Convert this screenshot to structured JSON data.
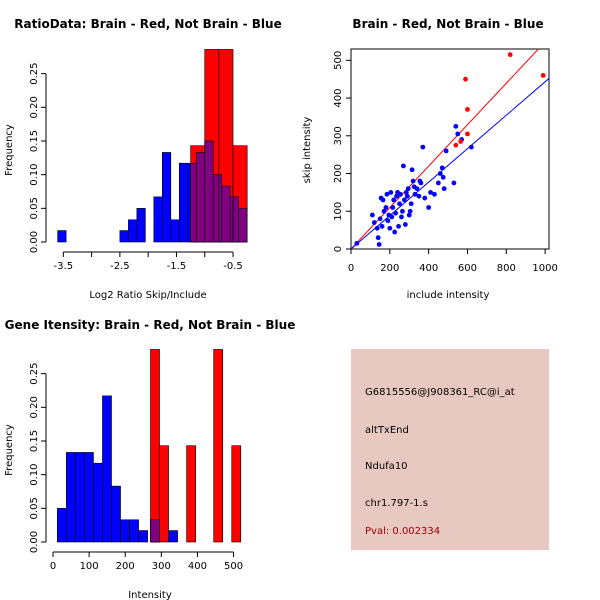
{
  "chart_data": [
    {
      "type": "histogram",
      "title": "RatioData: Brain - Red, Not Brain - Blue",
      "xlabel": "Log2 Ratio Skip/Include",
      "ylabel": "Frequency",
      "xlim": [
        -3.7,
        -0.2
      ],
      "ylim": [
        0,
        0.3
      ],
      "xticks": [
        -3.5,
        -3.0,
        -2.5,
        -2.0,
        -1.5,
        -1.0,
        -0.5
      ],
      "xtick_labels": [
        "-3.5",
        "",
        "-2.5",
        "",
        "-1.5",
        "",
        "-0.5"
      ],
      "yticks": [
        0,
        0.05,
        0.1,
        0.15,
        0.2,
        0.25
      ],
      "ytick_labels": [
        "0.00",
        "0.05",
        "0.10",
        "0.15",
        "0.20",
        "0.25"
      ],
      "series": [
        {
          "name": "Brain",
          "color": "#ff0000",
          "bins": [
            {
              "x0": -1.25,
              "x1": -1.0,
              "y": 0.143
            },
            {
              "x0": -1.0,
              "x1": -0.75,
              "y": 0.286
            },
            {
              "x0": -0.75,
              "x1": -0.5,
              "y": 0.286
            },
            {
              "x0": -0.5,
              "x1": -0.25,
              "y": 0.143
            }
          ]
        },
        {
          "name": "Not Brain",
          "color": "#0000ff",
          "bins": [
            {
              "x0": -3.6,
              "x1": -3.45,
              "y": 0.017
            },
            {
              "x0": -2.5,
              "x1": -2.35,
              "y": 0.017
            },
            {
              "x0": -2.35,
              "x1": -2.2,
              "y": 0.033
            },
            {
              "x0": -2.2,
              "x1": -2.05,
              "y": 0.05
            },
            {
              "x0": -1.9,
              "x1": -1.75,
              "y": 0.067
            },
            {
              "x0": -1.75,
              "x1": -1.6,
              "y": 0.133
            },
            {
              "x0": -1.6,
              "x1": -1.45,
              "y": 0.033
            },
            {
              "x0": -1.45,
              "x1": -1.3,
              "y": 0.117
            },
            {
              "x0": -1.3,
              "x1": -1.15,
              "y": 0.117
            },
            {
              "x0": -1.15,
              "x1": -1.0,
              "y": 0.133
            },
            {
              "x0": -1.0,
              "x1": -0.85,
              "y": 0.15
            },
            {
              "x0": -0.85,
              "x1": -0.7,
              "y": 0.1
            },
            {
              "x0": -0.7,
              "x1": -0.55,
              "y": 0.083
            },
            {
              "x0": -0.55,
              "x1": -0.4,
              "y": 0.067
            },
            {
              "x0": -0.4,
              "x1": -0.25,
              "y": 0.05
            }
          ]
        }
      ]
    },
    {
      "type": "scatter",
      "title": "Brain - Red, Not Brain - Blue",
      "xlabel": "include intensity",
      "ylabel": "skip intensity",
      "xlim": [
        0,
        1020
      ],
      "ylim": [
        0,
        530
      ],
      "xticks": [
        0,
        200,
        400,
        600,
        800,
        1000
      ],
      "yticks": [
        0,
        100,
        200,
        300,
        400,
        500
      ],
      "series": [
        {
          "name": "Not Brain",
          "color": "#0000ff",
          "points": [
            [
              30,
              15
            ],
            [
              110,
              90
            ],
            [
              120,
              70
            ],
            [
              135,
              55
            ],
            [
              140,
              30
            ],
            [
              145,
              12
            ],
            [
              150,
              80
            ],
            [
              155,
              135
            ],
            [
              160,
              60
            ],
            [
              165,
              130
            ],
            [
              170,
              100
            ],
            [
              180,
              110
            ],
            [
              185,
              145
            ],
            [
              190,
              75
            ],
            [
              195,
              90
            ],
            [
              200,
              55
            ],
            [
              205,
              150
            ],
            [
              210,
              85
            ],
            [
              215,
              110
            ],
            [
              220,
              130
            ],
            [
              225,
              45
            ],
            [
              230,
              95
            ],
            [
              235,
              140
            ],
            [
              240,
              150
            ],
            [
              245,
              60
            ],
            [
              250,
              120
            ],
            [
              255,
              145
            ],
            [
              260,
              85
            ],
            [
              265,
              100
            ],
            [
              270,
              220
            ],
            [
              275,
              130
            ],
            [
              280,
              65
            ],
            [
              285,
              150
            ],
            [
              290,
              140
            ],
            [
              295,
              160
            ],
            [
              300,
              90
            ],
            [
              305,
              100
            ],
            [
              310,
              120
            ],
            [
              315,
              210
            ],
            [
              320,
              180
            ],
            [
              325,
              165
            ],
            [
              330,
              145
            ],
            [
              340,
              160
            ],
            [
              350,
              140
            ],
            [
              355,
              180
            ],
            [
              360,
              175
            ],
            [
              370,
              270
            ],
            [
              380,
              135
            ],
            [
              400,
              110
            ],
            [
              410,
              150
            ],
            [
              430,
              145
            ],
            [
              450,
              175
            ],
            [
              460,
              200
            ],
            [
              470,
              215
            ],
            [
              475,
              190
            ],
            [
              480,
              160
            ],
            [
              490,
              260
            ],
            [
              530,
              175
            ],
            [
              540,
              325
            ],
            [
              550,
              305
            ],
            [
              570,
              290
            ],
            [
              620,
              270
            ]
          ]
        },
        {
          "name": "Brain",
          "color": "#ff0000",
          "points": [
            [
              540,
              275
            ],
            [
              565,
              285
            ],
            [
              590,
              450
            ],
            [
              600,
              370
            ],
            [
              600,
              305
            ],
            [
              820,
              515
            ],
            [
              990,
              460
            ]
          ]
        }
      ],
      "fit_lines": [
        {
          "name": "Brain",
          "color": "#ff0000",
          "x0": 0,
          "y0": 0,
          "x1": 1020,
          "y1": 560
        },
        {
          "name": "Not Brain",
          "color": "#0000ff",
          "x0": 0,
          "y0": 0,
          "x1": 1020,
          "y1": 452
        }
      ]
    },
    {
      "type": "histogram",
      "title": "Gene Itensity: Brain - Red, Not Brain - Blue",
      "xlabel": "Intensity",
      "ylabel": "Frequency",
      "xlim": [
        0,
        540
      ],
      "ylim": [
        0,
        0.3
      ],
      "xticks": [
        0,
        100,
        200,
        300,
        400,
        500
      ],
      "xtick_labels": [
        "0",
        "100",
        "200",
        "300",
        "400",
        "500"
      ],
      "yticks": [
        0,
        0.05,
        0.1,
        0.15,
        0.2,
        0.25
      ],
      "ytick_labels": [
        "0.00",
        "0.05",
        "0.10",
        "0.15",
        "0.20",
        "0.25"
      ],
      "series": [
        {
          "name": "Brain",
          "color": "#ff0000",
          "bins": [
            {
              "x0": 270,
              "x1": 295,
              "y": 0.286
            },
            {
              "x0": 295,
              "x1": 320,
              "y": 0.143
            },
            {
              "x0": 370,
              "x1": 395,
              "y": 0.143
            },
            {
              "x0": 445,
              "x1": 470,
              "y": 0.286
            },
            {
              "x0": 495,
              "x1": 520,
              "y": 0.143
            }
          ]
        },
        {
          "name": "Not Brain",
          "color": "#0000ff",
          "bins": [
            {
              "x0": 12,
              "x1": 37,
              "y": 0.05
            },
            {
              "x0": 37,
              "x1": 62,
              "y": 0.133
            },
            {
              "x0": 62,
              "x1": 87,
              "y": 0.133
            },
            {
              "x0": 87,
              "x1": 112,
              "y": 0.133
            },
            {
              "x0": 112,
              "x1": 137,
              "y": 0.117
            },
            {
              "x0": 137,
              "x1": 162,
              "y": 0.217
            },
            {
              "x0": 162,
              "x1": 187,
              "y": 0.083
            },
            {
              "x0": 187,
              "x1": 212,
              "y": 0.033
            },
            {
              "x0": 212,
              "x1": 237,
              "y": 0.033
            },
            {
              "x0": 237,
              "x1": 262,
              "y": 0.017
            },
            {
              "x0": 270,
              "x1": 295,
              "y": 0.033
            },
            {
              "x0": 320,
              "x1": 345,
              "y": 0.017
            }
          ]
        }
      ],
      "overlap_color": "#800080"
    }
  ],
  "info": {
    "probe_id": "G6815556@J908361_RC@i_at",
    "event_type": "altTxEnd",
    "gene": "Ndufa10",
    "location": "chr1.797-1.s",
    "pval": "Pval: 0.002334"
  },
  "colors": {
    "brain": "#ff0000",
    "not_brain": "#0000ff",
    "overlap": "#800080",
    "panel_bg": "#e8c9c2"
  }
}
